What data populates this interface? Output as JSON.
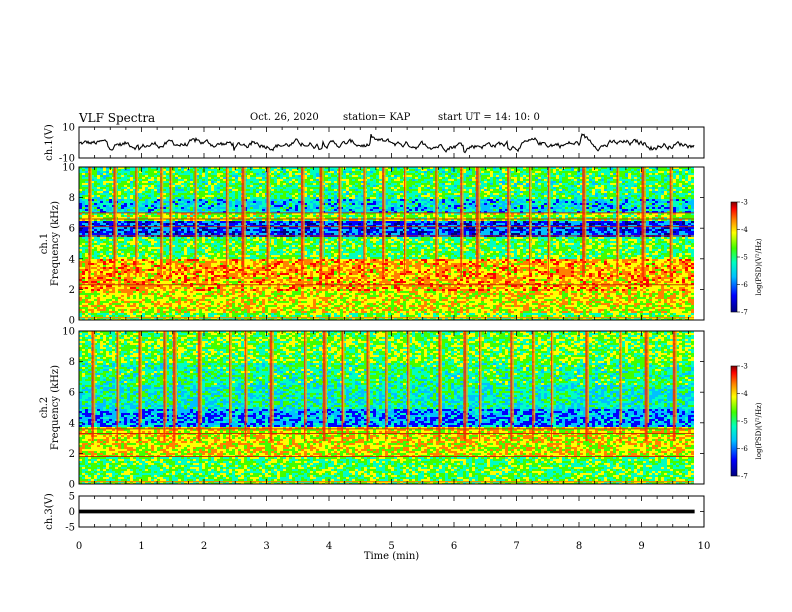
{
  "header": {
    "title": "VLF Spectra",
    "date": "Oct. 26, 2020",
    "station": "station= KAP",
    "start_ut": "start UT =  14: 10: 0"
  },
  "colors": {
    "colormap": [
      "#000080",
      "#0000ff",
      "#00c0ff",
      "#00ffc0",
      "#40ff00",
      "#ffff00",
      "#ff8000",
      "#ff0000",
      "#800000"
    ],
    "trace": "#000000",
    "frame": "#000000"
  },
  "chart_data": [
    {
      "type": "line",
      "panel": "ch1-waveform",
      "ylabel": "ch.1(V)",
      "ylim": [
        -10,
        10
      ],
      "y_ticks": [
        "10",
        "-10"
      ],
      "xlim": [
        0,
        10
      ],
      "x_ticks": [
        0,
        1,
        2,
        3,
        4,
        5,
        6,
        7,
        8,
        9,
        10
      ],
      "x_end": 9.85,
      "series": [
        {
          "values_range": [
            -8,
            7
          ],
          "mean": -1
        }
      ]
    },
    {
      "type": "heatmap",
      "panel": "ch1-spectrogram",
      "ylabel": "ch.1\nFrequency (kHz)",
      "ylim": [
        0,
        10
      ],
      "y_ticks": [
        "0",
        "2",
        "4",
        "6",
        "8",
        "10"
      ],
      "xlim": [
        0,
        10
      ],
      "x_end": 9.85,
      "colorbar": {
        "label": "log(PSD)(V²/Hz)",
        "range": [
          -7,
          -3
        ],
        "ticks": [
          "-3",
          "-4",
          "-5",
          "-6",
          "-7"
        ]
      },
      "bands": [
        {
          "fmin": 0,
          "fmax": 0.5,
          "level": -5.0
        },
        {
          "fmin": 0.5,
          "fmax": 2.0,
          "level": -4.5
        },
        {
          "fmin": 2.0,
          "fmax": 4.0,
          "level": -4.2
        },
        {
          "fmin": 4.0,
          "fmax": 5.5,
          "level": -5.1
        },
        {
          "fmin": 5.5,
          "fmax": 6.5,
          "level": -6.4
        },
        {
          "fmin": 6.5,
          "fmax": 7.0,
          "level": -4.8
        },
        {
          "fmin": 7.0,
          "fmax": 8.0,
          "level": -5.8
        },
        {
          "fmin": 8.0,
          "fmax": 10.0,
          "level": -5.2
        }
      ],
      "lines_khz": [
        2.3,
        5.5,
        6.1,
        6.6,
        7.0
      ],
      "bursts_min": [
        0.15,
        0.55,
        0.9,
        1.3,
        1.45,
        1.85,
        2.35,
        2.6,
        3.0,
        3.55,
        3.85,
        4.15,
        4.55,
        4.85,
        5.2,
        5.7,
        6.1,
        6.35,
        6.85,
        7.2,
        7.5,
        8.05,
        8.6,
        9.0,
        9.45
      ]
    },
    {
      "type": "heatmap",
      "panel": "ch2-spectrogram",
      "ylabel": "ch.2\nFrequency (kHz)",
      "ylim": [
        0,
        10
      ],
      "y_ticks": [
        "0",
        "2",
        "4",
        "6",
        "8",
        "10"
      ],
      "xlim": [
        0,
        10
      ],
      "x_end": 9.85,
      "colorbar": {
        "label": "log(PSD)(V²/Hz)",
        "range": [
          -7,
          -3
        ],
        "ticks": [
          "-3",
          "-4",
          "-5",
          "-6",
          "-7"
        ]
      },
      "bands": [
        {
          "fmin": 0,
          "fmax": 0.3,
          "level": -5.0
        },
        {
          "fmin": 0.3,
          "fmax": 1.8,
          "level": -5.1
        },
        {
          "fmin": 1.8,
          "fmax": 3.8,
          "level": -4.5
        },
        {
          "fmin": 3.8,
          "fmax": 5.0,
          "level": -6.1
        },
        {
          "fmin": 5.0,
          "fmax": 6.5,
          "level": -5.6
        },
        {
          "fmin": 6.5,
          "fmax": 8.0,
          "level": -5.3
        },
        {
          "fmin": 8.0,
          "fmax": 10.0,
          "level": -5.0
        }
      ],
      "lines_khz": [
        1.8,
        3.3,
        3.6
      ],
      "bursts_min": [
        0.2,
        0.6,
        0.95,
        1.35,
        1.5,
        1.9,
        2.4,
        2.65,
        3.05,
        3.6,
        3.9,
        4.2,
        4.6,
        4.9,
        5.25,
        5.75,
        6.15,
        6.4,
        6.9,
        7.25,
        7.55,
        8.1,
        8.65,
        9.05,
        9.5
      ]
    },
    {
      "type": "line",
      "panel": "ch3-waveform",
      "ylabel": "ch.3(V)",
      "ylim": [
        -5,
        5
      ],
      "y_ticks": [
        "5",
        "0",
        "-5"
      ],
      "xlim": [
        0,
        10
      ],
      "x_ticks": [
        0,
        1,
        2,
        3,
        4,
        5,
        6,
        7,
        8,
        9,
        10
      ],
      "x_end": 9.85,
      "xlabel": "Time (min)",
      "series": [
        {
          "level": 0,
          "values_range": [
            -0.6,
            0.6
          ]
        }
      ]
    }
  ]
}
